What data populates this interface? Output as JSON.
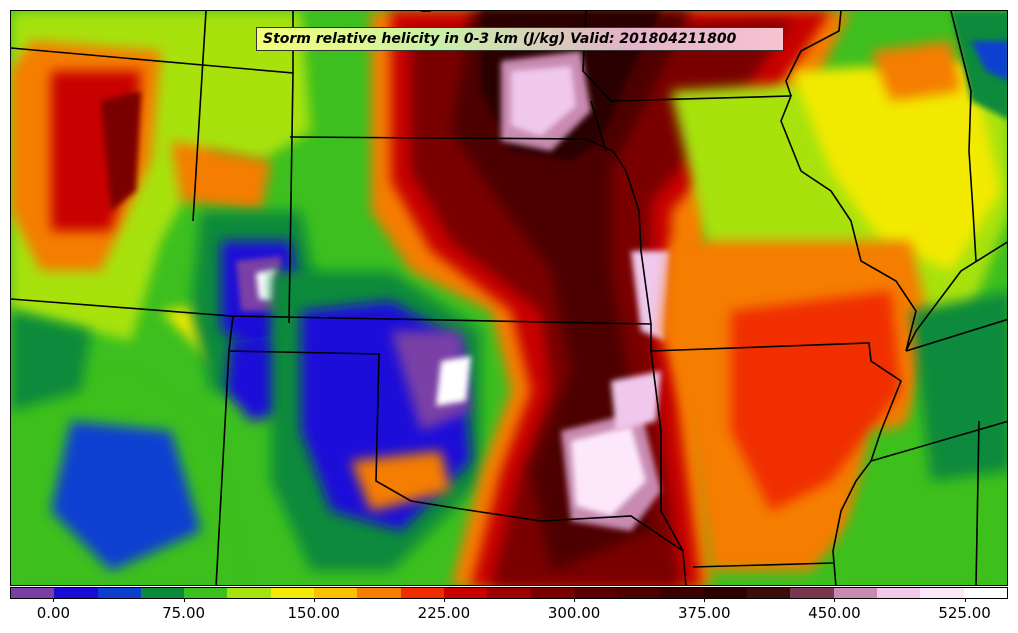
{
  "map": {
    "title": "Storm relative helicity in 0-3 km (J/kg) Valid: 201804211800",
    "field": "storm-relative-helicity-0-3km",
    "units": "J/kg",
    "valid_time": "201804211800"
  },
  "colorbar": {
    "colors": [
      "#7a3fa5",
      "#1a0bd8",
      "#0c3fd0",
      "#0a8a3a",
      "#3cbf1f",
      "#a7e20f",
      "#f2ea00",
      "#fbc000",
      "#f57d00",
      "#f02d00",
      "#c80000",
      "#9c0000",
      "#7a0000",
      "#5a0000",
      "#4e0000",
      "#3a0000",
      "#2c0000",
      "#3c0c0c",
      "#7a3550",
      "#c88ab0",
      "#f0c8ec",
      "#fde8fb",
      "#ffffff"
    ],
    "tick_labels": [
      "0.00",
      "75.00",
      "150.00",
      "225.00",
      "300.00",
      "375.00",
      "450.00",
      "525.00"
    ],
    "tick_values": [
      0,
      75,
      150,
      225,
      300,
      375,
      450,
      525
    ],
    "range": [
      -25,
      550
    ]
  }
}
